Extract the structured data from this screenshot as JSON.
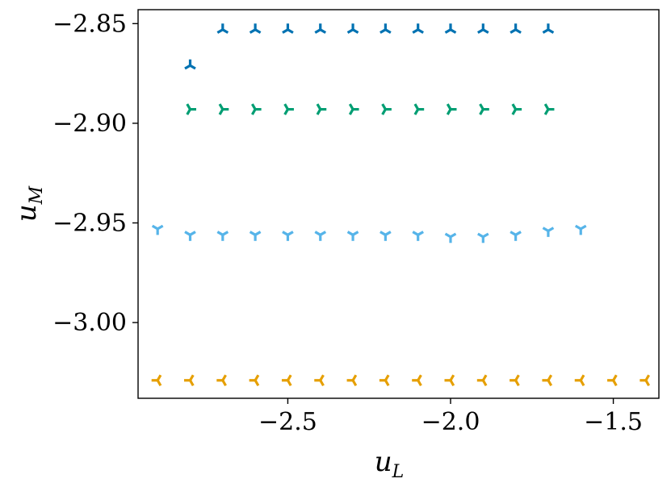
{
  "chart_data": {
    "type": "scatter",
    "title": "",
    "xlabel": "u",
    "xlabel_sub": "L",
    "ylabel": "u",
    "ylabel_sub": "M",
    "xlim": [
      -2.96,
      -1.36
    ],
    "ylim": [
      -3.038,
      -2.843
    ],
    "x_ticks": [
      -2.5,
      -2.0,
      -1.5
    ],
    "x_tick_labels": [
      "−2.5",
      "−2.0",
      "−1.5"
    ],
    "y_ticks": [
      -2.85,
      -2.9,
      -2.95,
      -3.0
    ],
    "y_tick_labels": [
      "−2.85",
      "−2.90",
      "−2.95",
      "−3.00"
    ],
    "grid": false,
    "series": [
      {
        "color": "#0072b2",
        "marker": "tri_down",
        "points": [
          [
            -2.8,
            -2.871
          ],
          [
            -2.7,
            -2.853
          ],
          [
            -2.6,
            -2.853
          ],
          [
            -2.5,
            -2.853
          ],
          [
            -2.4,
            -2.853
          ],
          [
            -2.3,
            -2.853
          ],
          [
            -2.2,
            -2.853
          ],
          [
            -2.1,
            -2.853
          ],
          [
            -2.0,
            -2.853
          ],
          [
            -1.9,
            -2.853
          ],
          [
            -1.8,
            -2.853
          ],
          [
            -1.7,
            -2.853
          ]
        ]
      },
      {
        "color": "#009e73",
        "marker": "tri_left",
        "points": [
          [
            -2.8,
            -2.893
          ],
          [
            -2.7,
            -2.893
          ],
          [
            -2.6,
            -2.893
          ],
          [
            -2.5,
            -2.893
          ],
          [
            -2.4,
            -2.893
          ],
          [
            -2.3,
            -2.893
          ],
          [
            -2.2,
            -2.893
          ],
          [
            -2.1,
            -2.893
          ],
          [
            -2.0,
            -2.893
          ],
          [
            -1.9,
            -2.893
          ],
          [
            -1.8,
            -2.893
          ],
          [
            -1.7,
            -2.893
          ]
        ]
      },
      {
        "color": "#56b4e9",
        "marker": "tri_up",
        "points": [
          [
            -2.9,
            -2.953
          ],
          [
            -2.8,
            -2.956
          ],
          [
            -2.7,
            -2.956
          ],
          [
            -2.6,
            -2.956
          ],
          [
            -2.5,
            -2.956
          ],
          [
            -2.4,
            -2.956
          ],
          [
            -2.3,
            -2.956
          ],
          [
            -2.2,
            -2.956
          ],
          [
            -2.1,
            -2.956
          ],
          [
            -2.0,
            -2.957
          ],
          [
            -1.9,
            -2.957
          ],
          [
            -1.8,
            -2.956
          ],
          [
            -1.7,
            -2.954
          ],
          [
            -1.6,
            -2.953
          ]
        ]
      },
      {
        "color": "#e69f00",
        "marker": "tri_right",
        "points": [
          [
            -2.9,
            -3.029
          ],
          [
            -2.8,
            -3.029
          ],
          [
            -2.7,
            -3.029
          ],
          [
            -2.6,
            -3.029
          ],
          [
            -2.5,
            -3.029
          ],
          [
            -2.4,
            -3.029
          ],
          [
            -2.3,
            -3.029
          ],
          [
            -2.2,
            -3.029
          ],
          [
            -2.1,
            -3.029
          ],
          [
            -2.0,
            -3.029
          ],
          [
            -1.9,
            -3.029
          ],
          [
            -1.8,
            -3.029
          ],
          [
            -1.7,
            -3.029
          ],
          [
            -1.6,
            -3.029
          ],
          [
            -1.5,
            -3.029
          ],
          [
            -1.4,
            -3.029
          ]
        ]
      }
    ]
  }
}
